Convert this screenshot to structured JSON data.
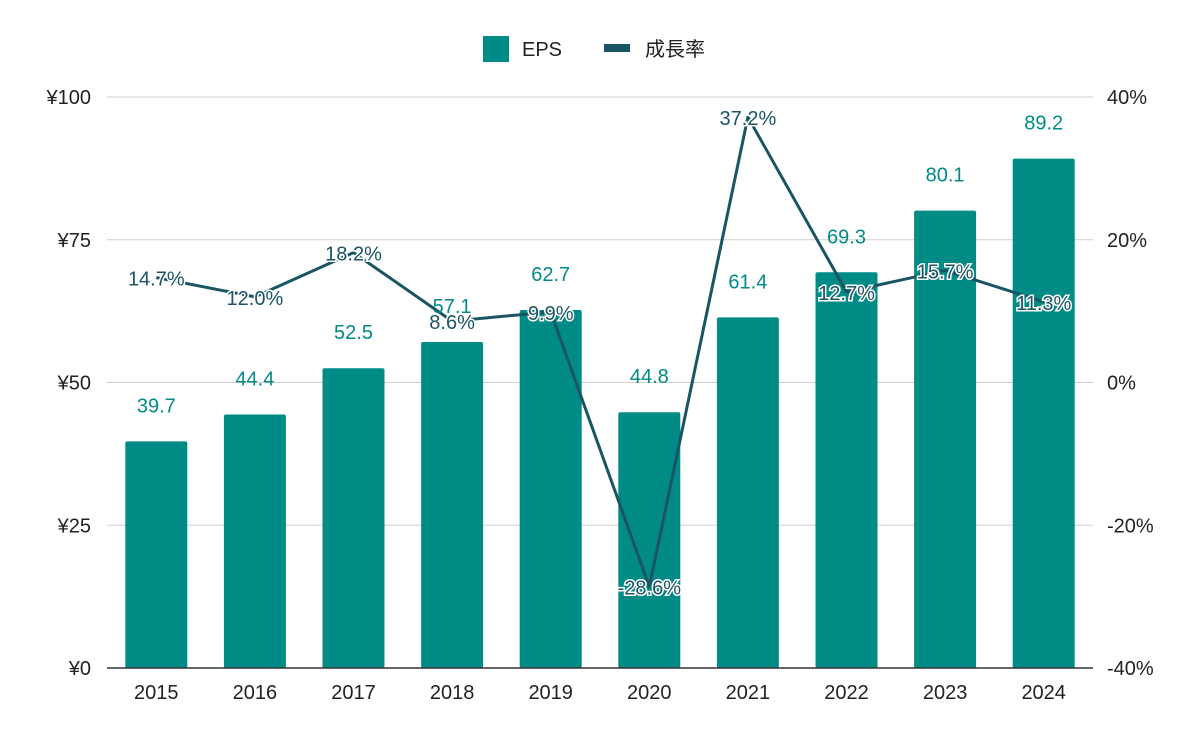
{
  "chart_data": {
    "type": "bar",
    "categories": [
      "2015",
      "2016",
      "2017",
      "2018",
      "2019",
      "2020",
      "2021",
      "2022",
      "2023",
      "2024"
    ],
    "series": [
      {
        "name": "EPS",
        "type": "bar",
        "axis": "left",
        "color": "#008b87",
        "values": [
          39.7,
          44.4,
          52.5,
          57.1,
          62.7,
          44.8,
          61.4,
          69.3,
          80.1,
          89.2
        ],
        "labels": [
          "39.7",
          "44.4",
          "52.5",
          "57.1",
          "62.7",
          "44.8",
          "61.4",
          "69.3",
          "80.1",
          "89.2"
        ]
      },
      {
        "name": "成長率",
        "type": "line",
        "axis": "right",
        "color": "#1b5563",
        "values": [
          14.7,
          12.0,
          18.2,
          8.6,
          9.9,
          -28.6,
          37.2,
          12.7,
          15.7,
          11.3
        ],
        "labels": [
          "14.7%",
          "12.0%",
          "18.2%",
          "8.6%",
          "9.9%",
          "-28.6%",
          "37.2%",
          "12.7%",
          "15.7%",
          "11.3%"
        ]
      }
    ],
    "left_axis": {
      "ylim": [
        0,
        100
      ],
      "ticks": [
        0,
        25,
        50,
        75,
        100
      ],
      "tick_labels": [
        "¥0",
        "¥25",
        "¥50",
        "¥75",
        "¥100"
      ]
    },
    "right_axis": {
      "ylim": [
        -40,
        40
      ],
      "ticks": [
        -40,
        -20,
        0,
        20,
        40
      ],
      "tick_labels": [
        "-40%",
        "-20%",
        "0%",
        "20%",
        "40%"
      ]
    },
    "grid": true,
    "legend_position": "top-center"
  }
}
